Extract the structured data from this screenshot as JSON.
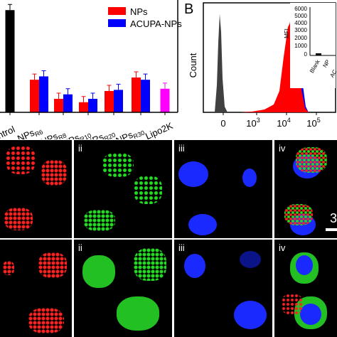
{
  "bar_chart": {
    "legend": [
      {
        "label": "NPs",
        "color": "#ff0000"
      },
      {
        "label": "ACUPA-NPs",
        "color": "#0000ff"
      }
    ],
    "truncated_category_label": "ntrol",
    "category_labels": [
      {
        "main": "NPs",
        "sub": "R6"
      },
      {
        "main": "NPs",
        "sub": "R8"
      },
      {
        "main": "NPs",
        "sub": "R10"
      },
      {
        "main": "NRs",
        "sub": "R20"
      },
      {
        "main": "NPs",
        "sub": "R30"
      },
      {
        "main": "Lipo2K",
        "sub": ""
      }
    ]
  },
  "chart_data": [
    {
      "type": "bar",
      "categories": [
        "Control",
        "NPsR6",
        "NPsR8",
        "NPsR10",
        "NRsR20",
        "NPsR30",
        "Lipo2K"
      ],
      "series": [
        {
          "name": "NPs",
          "values": [
            null,
            0.29,
            0.12,
            0.09,
            0.19,
            0.31,
            null
          ]
        },
        {
          "name": "ACUPA-NPs",
          "values": [
            null,
            0.32,
            0.16,
            0.12,
            0.2,
            0.29,
            null
          ]
        },
        {
          "name": "",
          "values": [
            0.91,
            null,
            null,
            null,
            null,
            null,
            0.21
          ]
        }
      ],
      "series_colors": [
        "#ff0000",
        "#0000ff",
        "#000000",
        "#ff00ff"
      ],
      "ylim": [
        0,
        1
      ],
      "legend_position": "top-right",
      "error_bars": true
    },
    {
      "type": "area",
      "panel_label": "B",
      "ylabel": "Count",
      "xscale": "log",
      "x_ticks": [
        "0",
        "10",
        "3",
        "10",
        "4",
        "10",
        "5"
      ],
      "series_colors": [
        "#404040",
        "#0000ff",
        "#ff0000"
      ],
      "peaks": [
        0,
        5000,
        6000
      ],
      "inset": {
        "type": "bar",
        "ylabel": "MFI",
        "y_ticks": [
          "6000",
          "5000",
          "4000",
          "3000",
          "2000",
          "1000",
          "0"
        ],
        "categories": [
          "Blank",
          "NP",
          "AC"
        ],
        "values": [
          200,
          null,
          null
        ],
        "ylim": [
          0,
          7000
        ]
      }
    }
  ],
  "micrographs": {
    "rows": [
      [
        {
          "label": "",
          "channel": "red",
          "scale_text": ""
        },
        {
          "label": "ii",
          "channel": "green",
          "scale_text": ""
        },
        {
          "label": "iii",
          "channel": "blue",
          "scale_text": ""
        },
        {
          "label": "iv",
          "channel": "merge",
          "scale_text": "3"
        }
      ],
      [
        {
          "label": "",
          "channel": "red",
          "scale_text": ""
        },
        {
          "label": "ii",
          "channel": "green",
          "scale_text": ""
        },
        {
          "label": "iii",
          "channel": "blue",
          "scale_text": ""
        },
        {
          "label": "iv",
          "channel": "merge",
          "scale_text": ""
        }
      ]
    ],
    "channel_colors": {
      "red": "#ff1a1a",
      "green": "#22dd22",
      "blue": "#1a2aff"
    }
  }
}
